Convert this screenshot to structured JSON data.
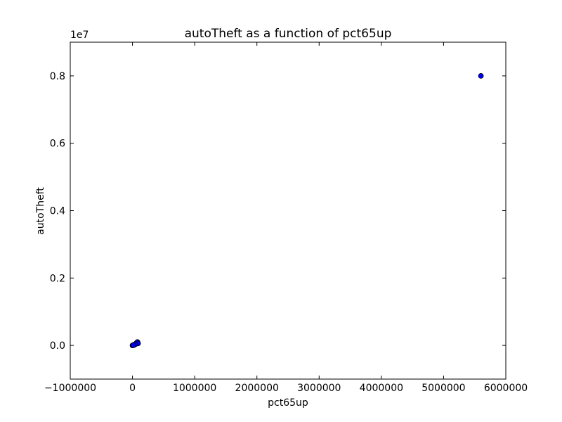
{
  "chart_data": {
    "type": "scatter",
    "title": "autoTheft as a function of pct65up",
    "xlabel": "pct65up",
    "ylabel": "autoTheft",
    "y_multiplier_label": "1e7",
    "xlim": [
      -1000000,
      6000000
    ],
    "ylim": [
      -1000000,
      9000000
    ],
    "x_ticks": [
      {
        "value": -1000000,
        "label": "−1000000"
      },
      {
        "value": 0,
        "label": "0"
      },
      {
        "value": 1000000,
        "label": "1000000"
      },
      {
        "value": 2000000,
        "label": "2000000"
      },
      {
        "value": 3000000,
        "label": "3000000"
      },
      {
        "value": 4000000,
        "label": "4000000"
      },
      {
        "value": 5000000,
        "label": "5000000"
      },
      {
        "value": 6000000,
        "label": "6000000"
      }
    ],
    "y_ticks": [
      {
        "value": 0,
        "label": "0.0"
      },
      {
        "value": 2000000,
        "label": "0.2"
      },
      {
        "value": 4000000,
        "label": "0.4"
      },
      {
        "value": 6000000,
        "label": "0.6"
      },
      {
        "value": 8000000,
        "label": "0.8"
      }
    ],
    "grid": false,
    "marker_color": "#0000ff",
    "series": [
      {
        "x": [
          5600000,
          0,
          4000,
          8000,
          12000,
          20000,
          30000,
          40000,
          50000,
          55000,
          60000,
          65000,
          70000,
          75000,
          80000,
          90000,
          35000,
          25000,
          45000,
          15000
        ],
        "y": [
          8000000,
          0,
          0,
          5000,
          10000,
          15000,
          20000,
          30000,
          40000,
          50000,
          60000,
          70000,
          80000,
          90000,
          100000,
          60000,
          25000,
          12000,
          35000,
          8000
        ]
      }
    ]
  }
}
